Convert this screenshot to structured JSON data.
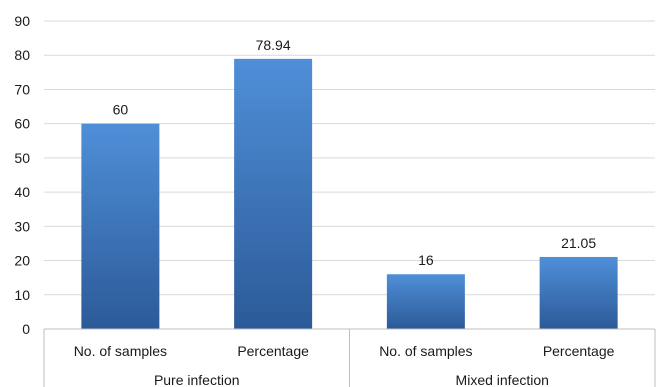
{
  "chart_data": {
    "type": "bar",
    "title": "",
    "xlabel": "",
    "ylabel": "",
    "ylim": [
      0,
      90
    ],
    "yticks": [
      0,
      10,
      20,
      30,
      40,
      50,
      60,
      70,
      80,
      90
    ],
    "grid": true,
    "groups": [
      {
        "label": "Pure infection",
        "bars": [
          {
            "category": "No. of samples",
            "value": 60,
            "label": "60"
          },
          {
            "category": "Percentage",
            "value": 78.94,
            "label": "78.94"
          }
        ]
      },
      {
        "label": "Mixed infection",
        "bars": [
          {
            "category": "No. of samples",
            "value": 16,
            "label": "16"
          },
          {
            "category": "Percentage",
            "value": 21.05,
            "label": "21.05"
          }
        ]
      }
    ],
    "colors": {
      "bar_top": "#4f8fd8",
      "bar_bottom": "#2c5a98",
      "grid": "#d9d9d9",
      "axis": "#bfbfbf"
    }
  }
}
